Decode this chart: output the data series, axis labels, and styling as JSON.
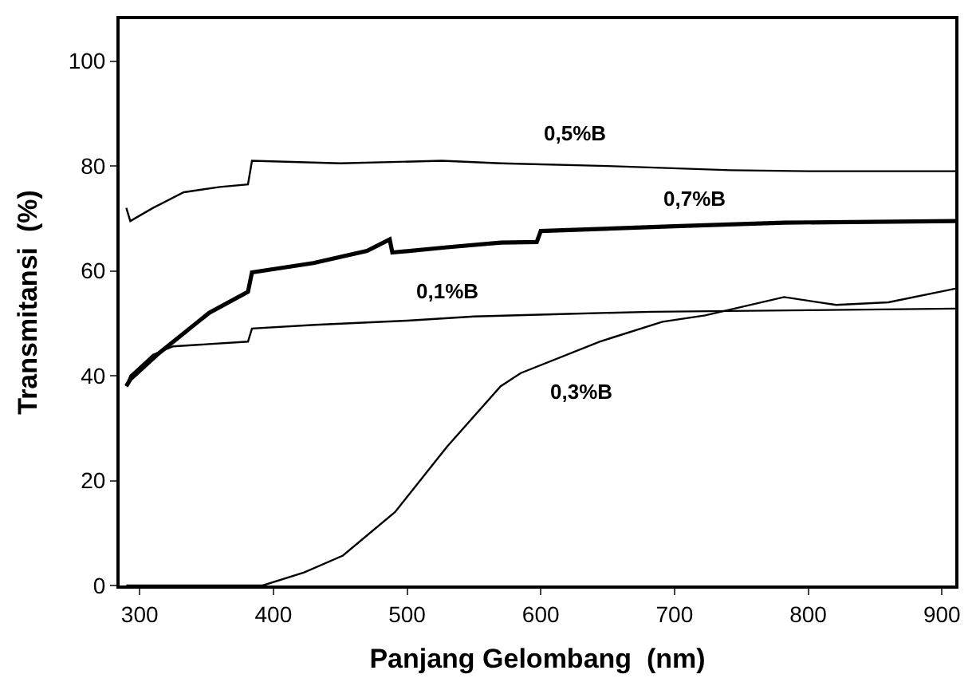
{
  "chart_data": {
    "type": "line",
    "xlabel": "Panjang Gelombang  (nm)",
    "ylabel": "Transmitansi  (%)",
    "xlim": [
      285,
      910
    ],
    "ylim": [
      0,
      108
    ],
    "xticks": [
      300,
      400,
      500,
      600,
      700,
      800,
      900
    ],
    "yticks": [
      0,
      20,
      40,
      60,
      80,
      100
    ],
    "legend": false,
    "marker": "none",
    "line_style": "solid",
    "series": [
      {
        "name": "0,5%B",
        "color": "#000000",
        "x": [
          290,
          293,
          310,
          333,
          360,
          381,
          384,
          450,
          526,
          570,
          650,
          742,
          800,
          910
        ],
        "values": [
          72,
          69.5,
          72,
          75,
          76,
          76.5,
          81,
          80.5,
          81,
          80.5,
          80,
          79.2,
          79,
          79
        ]
      },
      {
        "name": "0,7%B",
        "color": "#000000",
        "x": [
          290,
          293,
          313,
          352,
          381,
          384,
          430,
          470,
          487,
          489,
          530,
          570,
          597,
          600,
          700,
          782,
          910
        ],
        "values": [
          38,
          39.3,
          44,
          52,
          56,
          59.7,
          61.5,
          63.8,
          66,
          63.5,
          64.5,
          65.4,
          65.5,
          67.6,
          68.5,
          69.2,
          69.5
        ]
      },
      {
        "name": "0,1%B",
        "color": "#000000",
        "x": [
          290,
          293,
          310,
          325,
          381,
          384,
          431,
          500,
          550,
          620,
          683,
          800,
          910
        ],
        "values": [
          38,
          40,
          44,
          45.6,
          46.5,
          49,
          49.7,
          50.5,
          51.3,
          51.8,
          52.2,
          52.5,
          52.8
        ]
      },
      {
        "name": "0,3%B",
        "color": "#000000",
        "x": [
          290,
          392,
          423,
          452,
          491,
          530,
          570,
          585,
          644,
          691,
          723,
          782,
          821,
          860,
          910
        ],
        "values": [
          0,
          0,
          2.5,
          5.7,
          14,
          26.5,
          38,
          40.5,
          46.5,
          50.3,
          51.5,
          55,
          53.5,
          54,
          56.6
        ]
      }
    ]
  }
}
